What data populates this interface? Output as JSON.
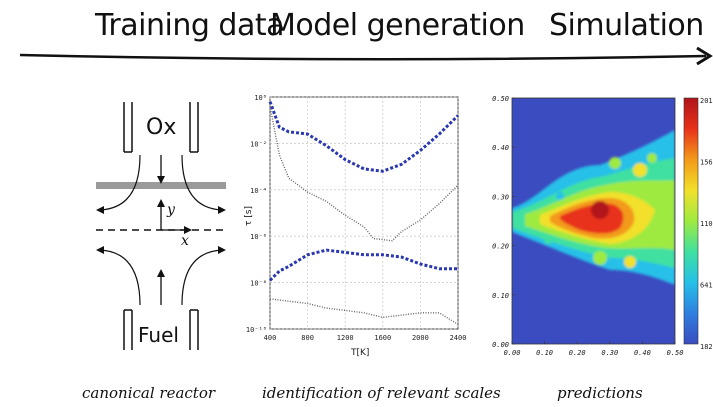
{
  "headings": {
    "training": "Training data",
    "model": "Model generation",
    "simulation": "Simulation"
  },
  "reactor": {
    "top_label": "Ox",
    "bottom_label": "Fuel",
    "y_label": "y",
    "x_label": "x"
  },
  "captions": {
    "reactor": "canonical reactor",
    "model": "identification of relevant scales",
    "simulation": "predictions"
  },
  "chart_data": [
    {
      "type": "line",
      "title": "",
      "xlabel": "T[K]",
      "ylabel": "τ [s]",
      "x_ticks": [
        "400",
        "800",
        "1200",
        "1600",
        "2000",
        "2400"
      ],
      "y_ticks": [
        "10⁰",
        "10⁻²",
        "10⁻⁴",
        "10⁻⁶",
        "10⁻⁸",
        "10⁻¹⁰"
      ],
      "xlim": [
        400,
        2400
      ],
      "ylim": [
        -10,
        0
      ],
      "log_y": true,
      "grid": true,
      "series": [
        {
          "style": "blue-dashed",
          "color": "#2a38b0",
          "x": [
            400,
            500,
            600,
            800,
            1000,
            1200,
            1400,
            1600,
            1800,
            2000,
            2200,
            2400
          ],
          "y": [
            -0.2,
            -1.3,
            -1.5,
            -1.6,
            -2.1,
            -2.7,
            -3.1,
            -3.2,
            -2.9,
            -2.3,
            -1.6,
            -0.8
          ]
        },
        {
          "style": "gray-dotted",
          "color": "#666666",
          "x": [
            400,
            500,
            600,
            800,
            1000,
            1200,
            1400,
            1500,
            1700,
            1800,
            2000,
            2200,
            2400
          ],
          "y": [
            -0.4,
            -2.5,
            -3.5,
            -4.1,
            -4.5,
            -5.1,
            -5.6,
            -6.1,
            -6.2,
            -5.8,
            -5.3,
            -4.6,
            -3.8
          ]
        },
        {
          "style": "blue-dashed",
          "color": "#2a38b0",
          "x": [
            400,
            500,
            600,
            800,
            1000,
            1200,
            1400,
            1600,
            1800,
            2000,
            2200,
            2400
          ],
          "y": [
            -7.9,
            -7.5,
            -7.3,
            -6.8,
            -6.6,
            -6.7,
            -6.8,
            -6.8,
            -6.9,
            -7.2,
            -7.4,
            -7.4
          ]
        },
        {
          "style": "gray-dotted",
          "color": "#666666",
          "x": [
            400,
            600,
            800,
            1000,
            1200,
            1400,
            1600,
            1800,
            2000,
            2200,
            2400
          ],
          "y": [
            -8.7,
            -8.8,
            -8.9,
            -9.1,
            -9.2,
            -9.3,
            -9.5,
            -9.4,
            -9.3,
            -9.3,
            -9.8
          ]
        }
      ]
    },
    {
      "type": "heatmap",
      "title": "",
      "x_ticks": [
        "0.00",
        "0.10",
        "0.20",
        "0.30",
        "0.40",
        "0.50"
      ],
      "y_ticks": [
        "0.00",
        "0.10",
        "0.20",
        "0.30",
        "0.40",
        "0.50"
      ],
      "xlim": [
        0,
        0.5
      ],
      "ylim": [
        0,
        0.5
      ],
      "colorbar_ticks": [
        "2019",
        "1560",
        "1101",
        "641",
        "182"
      ],
      "colormap": [
        "#3b4cc0",
        "#2f7fe0",
        "#26c0e8",
        "#3fe0a0",
        "#9fea40",
        "#f2e02a",
        "#f39a1a",
        "#e8321a",
        "#b0141a"
      ]
    }
  ]
}
